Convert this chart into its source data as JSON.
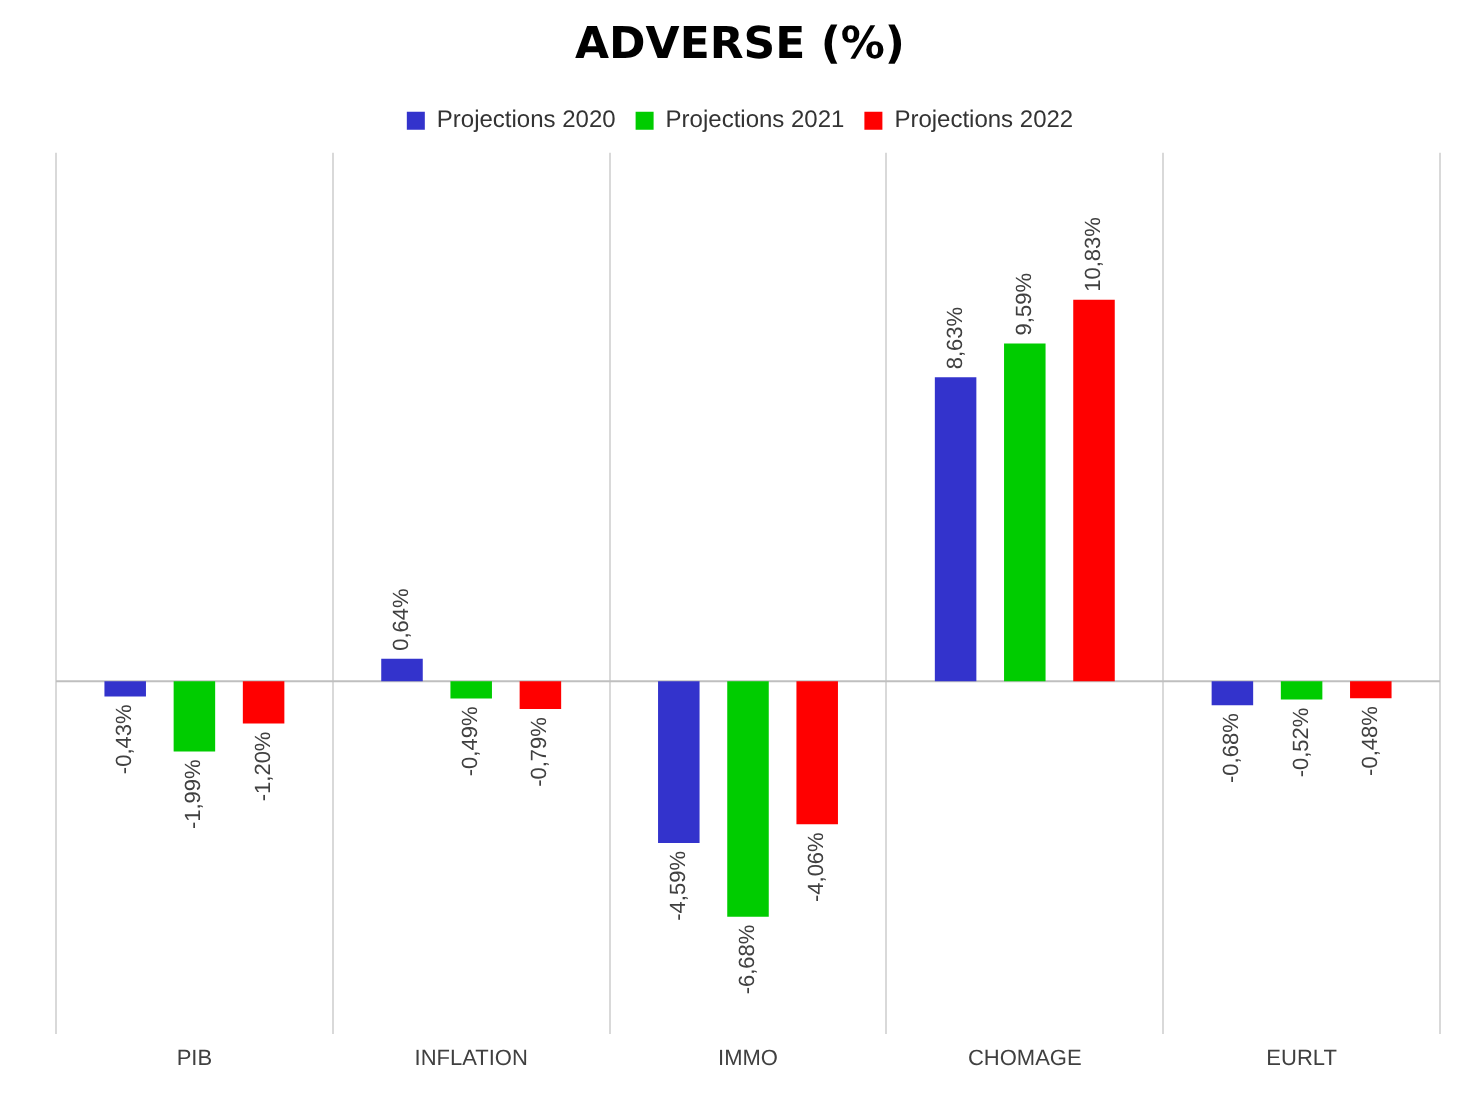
{
  "chart_data": {
    "type": "bar",
    "title": "ADVERSE (%)",
    "categories": [
      "PIB",
      "INFLATION",
      "IMMO",
      "CHOMAGE",
      "EURLT"
    ],
    "series": [
      {
        "name": "Projections 2020",
        "color": "#3333cc",
        "values": [
          -0.43,
          0.64,
          -4.59,
          8.63,
          -0.68
        ],
        "value_labels": [
          "-0,43%",
          "0,64%",
          "-4,59%",
          "8,63%",
          "-0,68%"
        ]
      },
      {
        "name": "Projections 2021",
        "color": "#00cc00",
        "values": [
          -1.99,
          -0.49,
          -6.68,
          9.59,
          -0.52
        ],
        "value_labels": [
          "-1,99%",
          "-0,49%",
          "-6,68%",
          "9,59%",
          "-0,52%"
        ]
      },
      {
        "name": "Projections 2022",
        "color": "#ff0000",
        "values": [
          -1.2,
          -0.79,
          -4.06,
          10.83,
          -0.48
        ],
        "value_labels": [
          "-1,20%",
          "-0,79%",
          "-4,06%",
          "10,83%",
          "-0,48%"
        ]
      }
    ],
    "grid": "x",
    "legend": "top"
  }
}
